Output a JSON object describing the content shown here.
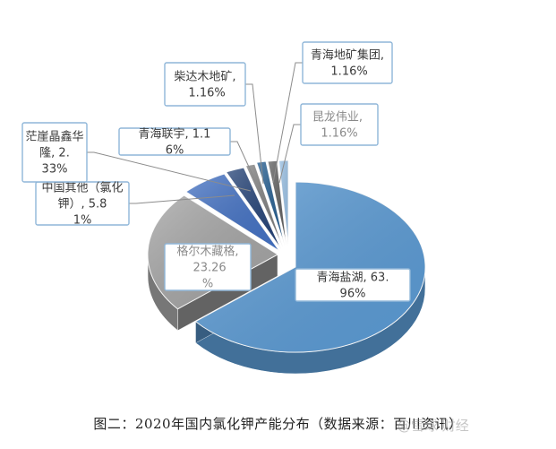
{
  "chart_data": {
    "type": "pie",
    "style": "3d-exploded",
    "slices": [
      {
        "label": "青海盐湖, 63.96%",
        "value": 63.96,
        "color": "#5b9bd5"
      },
      {
        "label": "格尔木藏格, 23.26%",
        "value": 23.26,
        "color": "#a5a5a5"
      },
      {
        "label": "中国其他（氯化钾）, 5.81%",
        "value": 5.81,
        "color": "#4472c4"
      },
      {
        "label": "茫崖晶鑫华隆, 2.33%",
        "value": 2.33,
        "color": "#264478"
      },
      {
        "label": "青海联宇, 1.16%",
        "value": 1.16,
        "color": "#7f7f7f"
      },
      {
        "label": "柴达木地矿, 1.16%",
        "value": 1.16,
        "color": "#255e91"
      },
      {
        "label": "青海地矿集团, 1.16%",
        "value": 1.16,
        "color": "#636363"
      },
      {
        "label": "昆龙伟业, 1.16%",
        "value": 1.16,
        "color": "#9dc3e6"
      }
    ]
  },
  "caption": "图二：2020年国内氯化钾产能分布（数据来源：百川资讯）",
  "watermark": "@雪球 财经"
}
